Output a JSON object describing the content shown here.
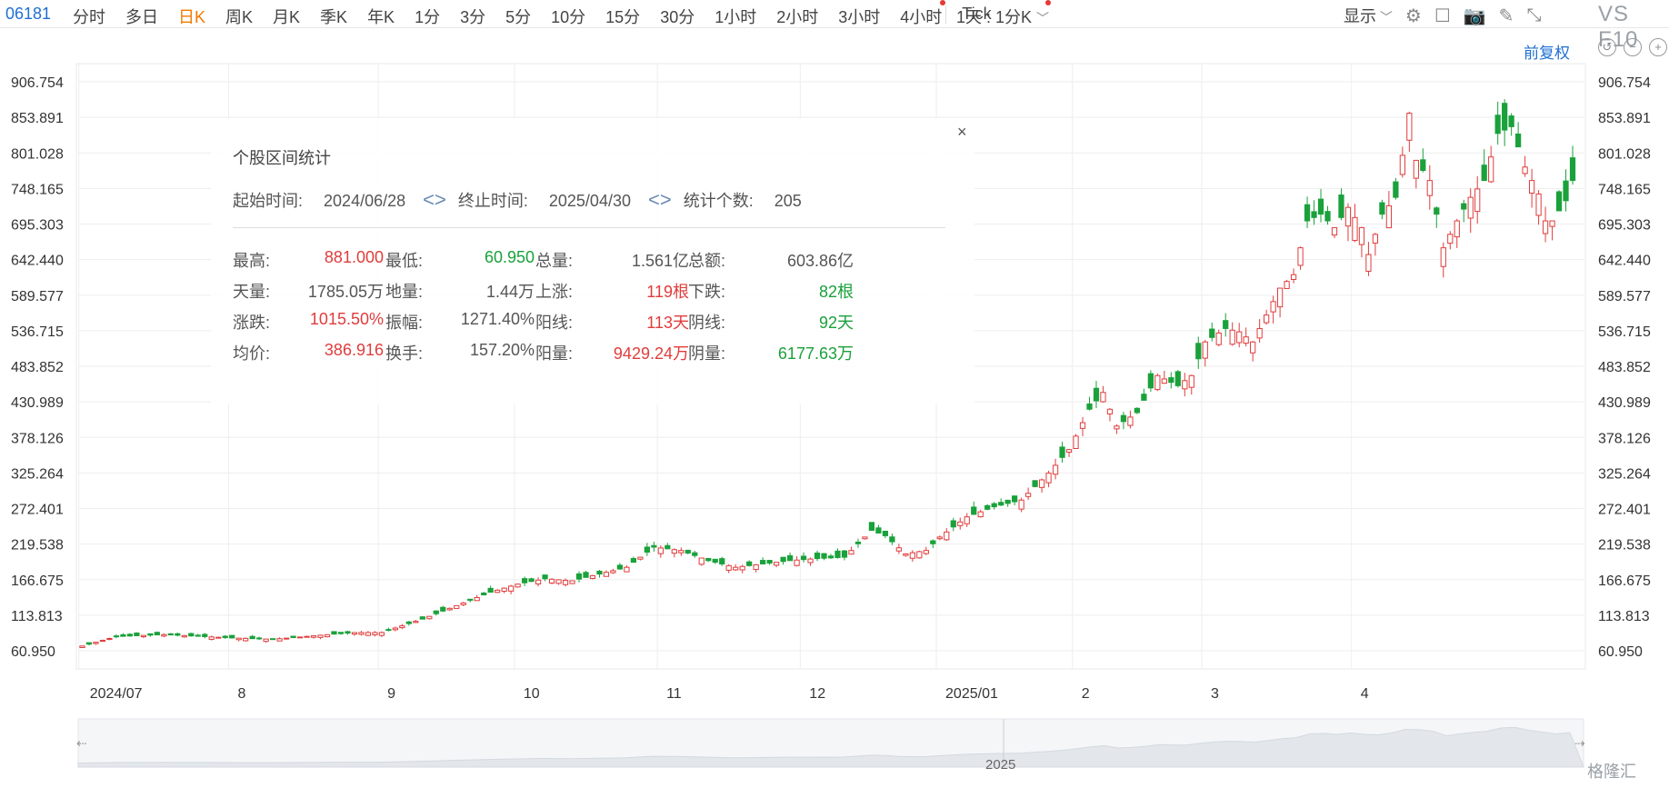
{
  "toolbar": {
    "code": "06181",
    "tabs": [
      "分时",
      "多日",
      "日K",
      "周K",
      "月K",
      "季K",
      "年K",
      "1分",
      "3分",
      "5分",
      "10分",
      "15分",
      "30分",
      "1小时",
      "2小时",
      "3小时",
      "4小时",
      "Tick"
    ],
    "active_tab": "日K",
    "range_select": "1天 : 1分K",
    "display_label": "显示",
    "vs_f10": "VS F10"
  },
  "fuquan_label": "前复权",
  "stats": {
    "title": "个股区间统计",
    "start_label": "起始时间:",
    "start_value": "2024/06/28",
    "end_label": "终止时间:",
    "end_value": "2025/04/30",
    "count_label": "统计个数:",
    "count_value": "205",
    "rows": [
      [
        {
          "label": "最高:",
          "value": "881.000",
          "color": "red"
        },
        {
          "label": "最低:",
          "value": "60.950",
          "color": "green"
        },
        {
          "label": "总量:",
          "value": "1.561亿",
          "color": "gray"
        },
        {
          "label": "总额:",
          "value": "603.86亿",
          "color": "gray"
        }
      ],
      [
        {
          "label": "天量:",
          "value": "1785.05万",
          "color": "gray"
        },
        {
          "label": "地量:",
          "value": "1.44万",
          "color": "gray"
        },
        {
          "label": "上涨:",
          "value": "119根",
          "color": "red"
        },
        {
          "label": "下跌:",
          "value": "82根",
          "color": "green"
        }
      ],
      [
        {
          "label": "涨跌:",
          "value": "1015.50%",
          "color": "red"
        },
        {
          "label": "振幅:",
          "value": "1271.40%",
          "color": "gray"
        },
        {
          "label": "阳线:",
          "value": "113天",
          "color": "red"
        },
        {
          "label": "阴线:",
          "value": "92天",
          "color": "green"
        }
      ],
      [
        {
          "label": "均价:",
          "value": "386.916",
          "color": "red"
        },
        {
          "label": "换手:",
          "value": "157.20%",
          "color": "gray"
        },
        {
          "label": "阳量:",
          "value": "9429.24万",
          "color": "red"
        },
        {
          "label": "阴量:",
          "value": "6177.63万",
          "color": "green"
        }
      ]
    ]
  },
  "watermark": "格隆汇",
  "chart_data": {
    "type": "candlestick",
    "y_ticks": [
      "906.754",
      "853.891",
      "801.028",
      "748.165",
      "695.303",
      "642.440",
      "589.577",
      "536.715",
      "483.852",
      "430.989",
      "378.126",
      "325.264",
      "272.401",
      "219.538",
      "166.675",
      "113.813",
      "60.950"
    ],
    "ylim": [
      60.95,
      906.754
    ],
    "x_month_labels": [
      "2024/07",
      "8",
      "9",
      "10",
      "11",
      "12",
      "2025/01",
      "2",
      "3",
      "4"
    ],
    "month_start_index": [
      0,
      22,
      44,
      64,
      85,
      106,
      126,
      146,
      165,
      187
    ],
    "navigator_label": "2025",
    "colors": {
      "up": "#e03c3c",
      "down": "#1aa13b",
      "grid": "#eeeeee"
    },
    "anchor_closes": [
      [
        0,
        68
      ],
      [
        5,
        82
      ],
      [
        12,
        85
      ],
      [
        18,
        82
      ],
      [
        22,
        80
      ],
      [
        28,
        78
      ],
      [
        35,
        84
      ],
      [
        40,
        88
      ],
      [
        44,
        88
      ],
      [
        50,
        108
      ],
      [
        55,
        128
      ],
      [
        60,
        148
      ],
      [
        64,
        160
      ],
      [
        68,
        168
      ],
      [
        72,
        165
      ],
      [
        76,
        175
      ],
      [
        80,
        185
      ],
      [
        84,
        215
      ],
      [
        88,
        210
      ],
      [
        92,
        195
      ],
      [
        96,
        185
      ],
      [
        100,
        190
      ],
      [
        104,
        195
      ],
      [
        108,
        198
      ],
      [
        112,
        200
      ],
      [
        116,
        240
      ],
      [
        118,
        232
      ],
      [
        121,
        205
      ],
      [
        124,
        210
      ],
      [
        126,
        230
      ],
      [
        130,
        260
      ],
      [
        134,
        275
      ],
      [
        138,
        285
      ],
      [
        142,
        325
      ],
      [
        145,
        360
      ],
      [
        148,
        420
      ],
      [
        150,
        445
      ],
      [
        152,
        395
      ],
      [
        155,
        415
      ],
      [
        158,
        470
      ],
      [
        161,
        455
      ],
      [
        163,
        470
      ],
      [
        165,
        520
      ],
      [
        168,
        540
      ],
      [
        170,
        535
      ],
      [
        172,
        520
      ],
      [
        174,
        560
      ],
      [
        176,
        600
      ],
      [
        178,
        620
      ],
      [
        180,
        700
      ],
      [
        182,
        710
      ],
      [
        184,
        690
      ],
      [
        186,
        720
      ],
      [
        188,
        690
      ],
      [
        189,
        650
      ],
      [
        191,
        710
      ],
      [
        193,
        735
      ],
      [
        195,
        860
      ],
      [
        196,
        790
      ],
      [
        198,
        760
      ],
      [
        200,
        660
      ],
      [
        202,
        700
      ],
      [
        204,
        735
      ],
      [
        206,
        760
      ],
      [
        208,
        830
      ],
      [
        210,
        840
      ],
      [
        212,
        780
      ],
      [
        214,
        740
      ],
      [
        215,
        700
      ],
      [
        216,
        700
      ],
      [
        218,
        730
      ],
      [
        219,
        760
      ]
    ]
  }
}
